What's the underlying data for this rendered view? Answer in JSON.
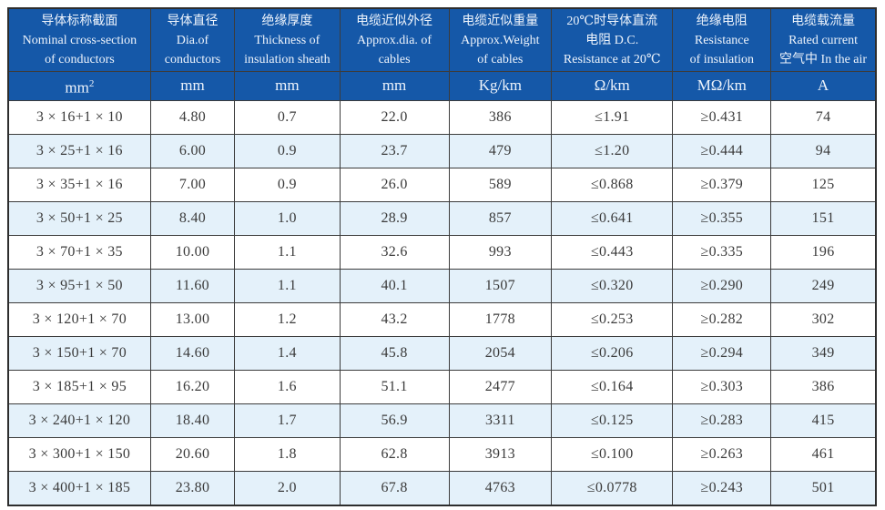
{
  "colors": {
    "header_background": "#1558a8",
    "header_text": "#eef4fc",
    "row_stripe": "#e4f1fa",
    "row_plain": "#ffffff",
    "grid_border": "#3c3c3c",
    "cell_text": "#3b3b3b"
  },
  "table": {
    "columns": [
      {
        "lines": [
          "导体标称截面",
          "Nominal cross-section",
          "of conductors"
        ],
        "unit": "mm²"
      },
      {
        "lines": [
          "导体直径",
          "Dia.of",
          "conductors"
        ],
        "unit": "mm"
      },
      {
        "lines": [
          "绝缘厚度",
          "Thickness of",
          "insulation sheath"
        ],
        "unit": "mm"
      },
      {
        "lines": [
          "电缆近似外径",
          "Approx.dia. of",
          "cables"
        ],
        "unit": "mm"
      },
      {
        "lines": [
          "电缆近似重量",
          "Approx.Weight",
          "of cables"
        ],
        "unit": "Kg/km"
      },
      {
        "lines": [
          "20℃时导体直流",
          "电阻 D.C.",
          "Resistance at 20℃"
        ],
        "unit": "Ω/km"
      },
      {
        "lines": [
          "绝缘电阻",
          "Resistance",
          "of insulation"
        ],
        "unit": "MΩ/km"
      },
      {
        "lines": [
          "电缆载流量",
          "Rated current",
          "空气中 In the air"
        ],
        "unit": "A"
      }
    ],
    "rows": [
      [
        "3 × 16+1 × 10",
        "4.80",
        "0.7",
        "22.0",
        "386",
        "≤1.91",
        "≥0.431",
        "74"
      ],
      [
        "3 × 25+1 × 16",
        "6.00",
        "0.9",
        "23.7",
        "479",
        "≤1.20",
        "≥0.444",
        "94"
      ],
      [
        "3 × 35+1 × 16",
        "7.00",
        "0.9",
        "26.0",
        "589",
        "≤0.868",
        "≥0.379",
        "125"
      ],
      [
        "3 × 50+1 × 25",
        "8.40",
        "1.0",
        "28.9",
        "857",
        "≤0.641",
        "≥0.355",
        "151"
      ],
      [
        "3 × 70+1 × 35",
        "10.00",
        "1.1",
        "32.6",
        "993",
        "≤0.443",
        "≥0.335",
        "196"
      ],
      [
        "3 × 95+1 × 50",
        "11.60",
        "1.1",
        "40.1",
        "1507",
        "≤0.320",
        "≥0.290",
        "249"
      ],
      [
        "3 × 120+1 × 70",
        "13.00",
        "1.2",
        "43.2",
        "1778",
        "≤0.253",
        "≥0.282",
        "302"
      ],
      [
        "3 × 150+1 × 70",
        "14.60",
        "1.4",
        "45.8",
        "2054",
        "≤0.206",
        "≥0.294",
        "349"
      ],
      [
        "3 × 185+1 × 95",
        "16.20",
        "1.6",
        "51.1",
        "2477",
        "≤0.164",
        "≥0.303",
        "386"
      ],
      [
        "3 × 240+1 × 120",
        "18.40",
        "1.7",
        "56.9",
        "3311",
        "≤0.125",
        "≥0.283",
        "415"
      ],
      [
        "3 × 300+1 × 150",
        "20.60",
        "1.8",
        "62.8",
        "3913",
        "≤0.100",
        "≥0.263",
        "461"
      ],
      [
        "3 × 400+1 × 185",
        "23.80",
        "2.0",
        "67.8",
        "4763",
        "≤0.0778",
        "≥0.243",
        "501"
      ]
    ]
  }
}
